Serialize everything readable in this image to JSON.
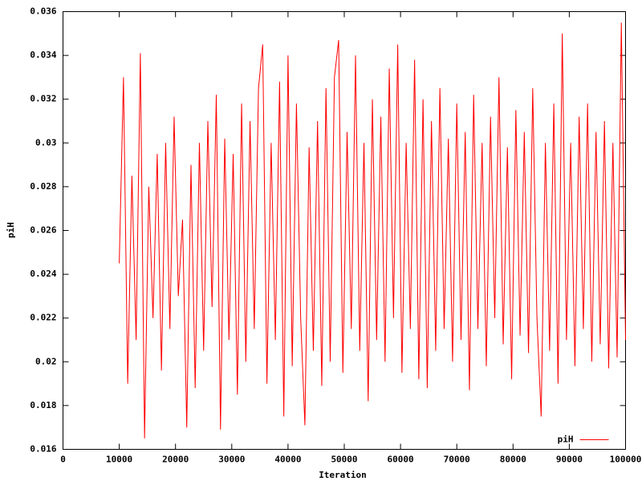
{
  "chart_data": {
    "type": "line",
    "xlabel": "Iteration",
    "ylabel": "piH",
    "x": [
      10000,
      10750,
      11500,
      12250,
      13000,
      13750,
      14500,
      15250,
      16000,
      16750,
      17500,
      18250,
      19000,
      19750,
      20500,
      21250,
      22000,
      22750,
      23500,
      24250,
      25000,
      25750,
      26500,
      27250,
      28000,
      28750,
      29500,
      30250,
      31000,
      31750,
      32500,
      33250,
      34000,
      34750,
      35500,
      36250,
      37000,
      37750,
      38500,
      39250,
      40000,
      40750,
      41500,
      42250,
      43000,
      43750,
      44500,
      45250,
      46000,
      46750,
      47500,
      48250,
      49000,
      49750,
      50500,
      51250,
      52000,
      52750,
      53500,
      54250,
      55000,
      55750,
      56500,
      57250,
      58000,
      58750,
      59500,
      60250,
      61000,
      61750,
      62500,
      63250,
      64000,
      64750,
      65500,
      66250,
      67000,
      67750,
      68500,
      69250,
      70000,
      70750,
      71500,
      72250,
      73000,
      73750,
      74500,
      75250,
      76000,
      76750,
      77500,
      78250,
      79000,
      79750,
      80500,
      81250,
      82000,
      82750,
      83500,
      84250,
      85000,
      85750,
      86500,
      87250,
      88000,
      88750,
      89500,
      90250,
      91000,
      91750,
      92500,
      93250,
      94000,
      94750,
      95500,
      96250,
      97000,
      97750,
      98500,
      99250,
      100000
    ],
    "series": [
      {
        "name": "piH",
        "color": "#ff0000",
        "values": [
          0.0245,
          0.033,
          0.019,
          0.0285,
          0.021,
          0.0341,
          0.0165,
          0.028,
          0.022,
          0.0295,
          0.0196,
          0.03,
          0.0215,
          0.0312,
          0.023,
          0.0265,
          0.017,
          0.029,
          0.0188,
          0.03,
          0.0205,
          0.031,
          0.0225,
          0.0322,
          0.0169,
          0.0302,
          0.021,
          0.0295,
          0.0185,
          0.0318,
          0.02,
          0.031,
          0.0215,
          0.0325,
          0.0345,
          0.019,
          0.03,
          0.021,
          0.0328,
          0.0175,
          0.034,
          0.0198,
          0.0318,
          0.022,
          0.0171,
          0.0298,
          0.0205,
          0.031,
          0.0189,
          0.0325,
          0.02,
          0.033,
          0.0347,
          0.0195,
          0.0305,
          0.0215,
          0.034,
          0.0205,
          0.03,
          0.0182,
          0.032,
          0.021,
          0.0312,
          0.02,
          0.0334,
          0.022,
          0.0345,
          0.0195,
          0.03,
          0.0215,
          0.0338,
          0.0192,
          0.032,
          0.0188,
          0.031,
          0.0205,
          0.0325,
          0.0215,
          0.0302,
          0.02,
          0.0318,
          0.021,
          0.0305,
          0.0187,
          0.0322,
          0.0215,
          0.03,
          0.0198,
          0.0312,
          0.022,
          0.033,
          0.0208,
          0.0298,
          0.0192,
          0.0315,
          0.0212,
          0.0305,
          0.0204,
          0.0325,
          0.022,
          0.0175,
          0.03,
          0.0205,
          0.0318,
          0.019,
          0.035,
          0.021,
          0.03,
          0.0198,
          0.0312,
          0.0215,
          0.0318,
          0.02,
          0.0305,
          0.0208,
          0.031,
          0.0197,
          0.03,
          0.0202,
          0.0355,
          0.021
        ]
      }
    ],
    "xlim": [
      0,
      100000
    ],
    "xticks": [
      0,
      10000,
      20000,
      30000,
      40000,
      50000,
      60000,
      70000,
      80000,
      90000,
      100000
    ],
    "ylim": [
      0.016,
      0.036
    ],
    "yticks": [
      0.016,
      0.018,
      0.02,
      0.022,
      0.024,
      0.026,
      0.028,
      0.03,
      0.032,
      0.034,
      0.036
    ],
    "legend": "bottom right"
  }
}
